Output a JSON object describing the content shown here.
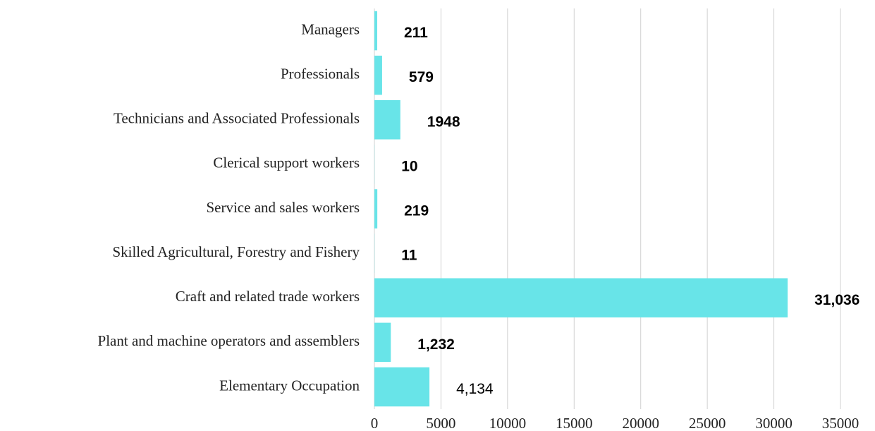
{
  "chart_data": {
    "type": "bar",
    "orientation": "horizontal",
    "categories": [
      "Managers",
      "Professionals",
      "Technicians and Associated Professionals",
      "Clerical support workers",
      "Service and sales workers",
      "Skilled Agricultural, Forestry and Fishery",
      "Craft and related trade workers",
      "Plant and machine operators and assemblers",
      "Elementary Occupation"
    ],
    "values": [
      211,
      579,
      1948,
      10,
      219,
      11,
      31036,
      1232,
      4134
    ],
    "value_labels": [
      "211",
      "579",
      "1948",
      "10",
      "219",
      "11",
      "31,036",
      "1,232",
      "4,134"
    ],
    "color": "#68e4e8",
    "xlim": [
      0,
      35000
    ],
    "xticks": [
      0,
      5000,
      10000,
      15000,
      20000,
      25000,
      30000,
      35000
    ],
    "grid": true
  }
}
